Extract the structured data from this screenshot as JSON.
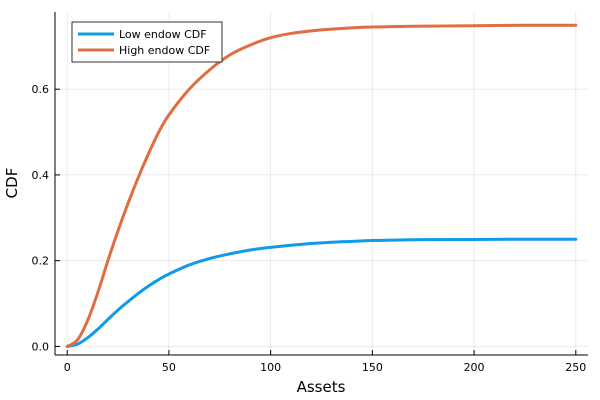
{
  "chart_data": {
    "type": "line",
    "title": "",
    "xlabel": "Assets",
    "ylabel": "CDF",
    "xlim": [
      -6,
      256
    ],
    "ylim": [
      -0.02,
      0.78
    ],
    "xticks": [
      0,
      50,
      100,
      150,
      200,
      250
    ],
    "xtick_labels": [
      "0",
      "50",
      "100",
      "150",
      "200",
      "250"
    ],
    "yticks": [
      0.0,
      0.2,
      0.4,
      0.6
    ],
    "ytick_labels": [
      "0.0",
      "0.2",
      "0.4",
      "0.6"
    ],
    "grid": true,
    "legend_position": "top-left",
    "x": [
      0,
      5,
      10,
      15,
      20,
      25,
      30,
      35,
      40,
      45,
      50,
      60,
      70,
      80,
      90,
      100,
      110,
      120,
      130,
      140,
      150,
      175,
      200,
      225,
      250
    ],
    "series": [
      {
        "name": "Low endow CDF",
        "color": "#0f9be8",
        "values": [
          0.0,
          0.005,
          0.02,
          0.04,
          0.063,
          0.085,
          0.105,
          0.124,
          0.141,
          0.156,
          0.169,
          0.19,
          0.205,
          0.216,
          0.225,
          0.231,
          0.236,
          0.24,
          0.243,
          0.245,
          0.247,
          0.249,
          0.2495,
          0.25,
          0.25
        ]
      },
      {
        "name": "High endow CDF",
        "color": "#e06d3f",
        "values": [
          0.0,
          0.015,
          0.06,
          0.125,
          0.2,
          0.27,
          0.335,
          0.395,
          0.45,
          0.5,
          0.54,
          0.6,
          0.645,
          0.68,
          0.703,
          0.72,
          0.73,
          0.736,
          0.74,
          0.743,
          0.745,
          0.747,
          0.748,
          0.749,
          0.749
        ]
      }
    ]
  }
}
